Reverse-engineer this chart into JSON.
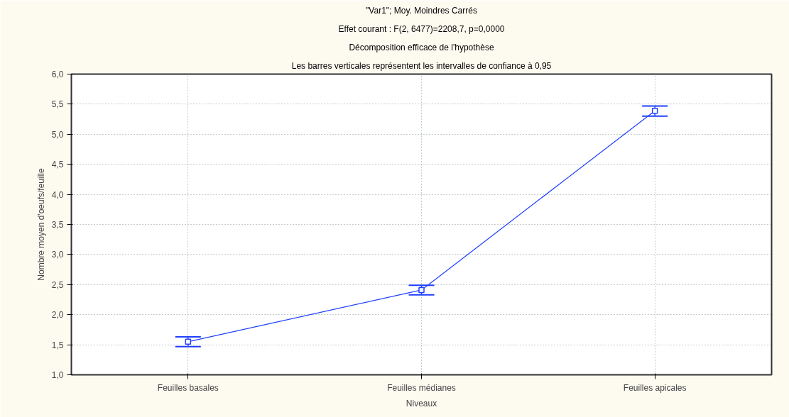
{
  "chart_data": {
    "type": "line",
    "title": "\"Var1\"; Moy. Moindres Carrés",
    "subtitle": "Effet courant : F(2, 6477)=2208,7, p=0,0000",
    "annotations": [
      "Décomposition efficace de l'hypothèse",
      "Les barres verticales représentent les intervalles de confiance à 0,95"
    ],
    "xlabel": "Niveaux",
    "ylabel": "Nombre moyen d'oeufs/feuille",
    "categories": [
      "Feuilles basales",
      "Feuilles médianes",
      "Feuilles apicales"
    ],
    "series": [
      {
        "color": "#1f3fff",
        "values": [
          1.55,
          2.41,
          5.39
        ],
        "errors": [
          [
            1.47,
            1.63
          ],
          [
            2.33,
            2.49
          ],
          [
            5.3,
            5.47
          ]
        ]
      }
    ],
    "ylim": [
      1.0,
      6.0
    ],
    "yticks": [
      {
        "value": 1.0,
        "label": "1,0"
      },
      {
        "value": 1.5,
        "label": "1,5"
      },
      {
        "value": 2.0,
        "label": "2,0"
      },
      {
        "value": 2.5,
        "label": "2,5"
      },
      {
        "value": 3.0,
        "label": "3,0"
      },
      {
        "value": 3.5,
        "label": "3,5"
      },
      {
        "value": 4.0,
        "label": "4,0"
      },
      {
        "value": 4.5,
        "label": "4,5"
      },
      {
        "value": 5.0,
        "label": "5,0"
      },
      {
        "value": 5.5,
        "label": "5,5"
      },
      {
        "value": 6.0,
        "label": "6,0"
      }
    ],
    "grid": true,
    "marker": "square",
    "line_style": "solid"
  }
}
